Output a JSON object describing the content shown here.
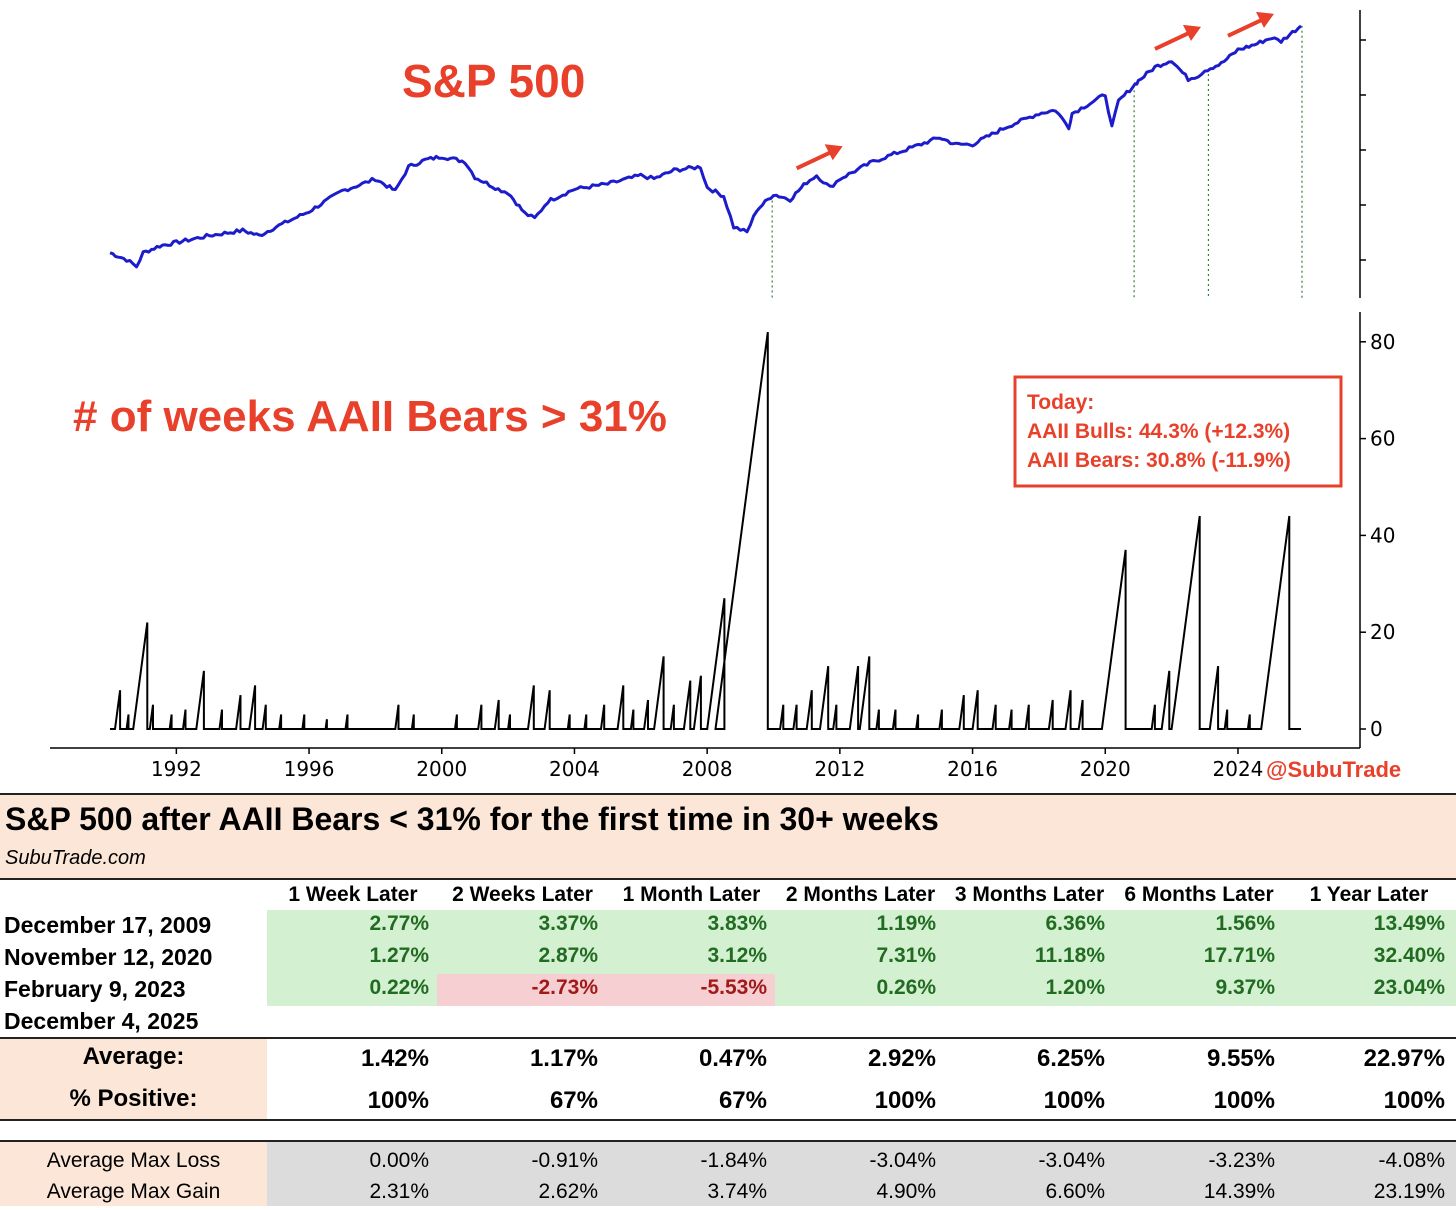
{
  "chart_data": [
    {
      "type": "line",
      "title": "S&P 500",
      "x_range": [
        1990,
        2025.9
      ],
      "series": [
        {
          "name": "S&P 500 (log scale, relative)",
          "color": "#1c1ccc",
          "x": [
            1990.0,
            1990.5,
            1990.8,
            1991.0,
            1991.5,
            1992.0,
            1993.0,
            1994.0,
            1994.5,
            1995.0,
            1996.0,
            1997.0,
            1997.6,
            1998.0,
            1998.6,
            1999.0,
            1999.5,
            2000.0,
            2000.7,
            2001.0,
            2001.7,
            2002.0,
            2002.5,
            2002.8,
            2003.2,
            2004.0,
            2005.0,
            2006.0,
            2006.4,
            2007.0,
            2007.8,
            2008.0,
            2008.5,
            2008.8,
            2009.2,
            2009.5,
            2010.0,
            2010.5,
            2011.0,
            2011.3,
            2011.7,
            2012.0,
            2013.0,
            2014.0,
            2015.0,
            2015.5,
            2016.0,
            2016.5,
            2017.0,
            2018.0,
            2018.5,
            2018.9,
            2019.0,
            2020.0,
            2020.2,
            2020.4,
            2020.9,
            2021.0,
            2021.5,
            2022.0,
            2022.5,
            2022.8,
            2023.0,
            2023.5,
            2024.0,
            2024.5,
            2025.0,
            2025.3,
            2025.9
          ],
          "y": [
            0.1,
            0.06,
            0.02,
            0.1,
            0.14,
            0.16,
            0.2,
            0.23,
            0.2,
            0.25,
            0.34,
            0.46,
            0.5,
            0.53,
            0.46,
            0.6,
            0.64,
            0.66,
            0.63,
            0.54,
            0.47,
            0.45,
            0.33,
            0.3,
            0.4,
            0.47,
            0.5,
            0.55,
            0.53,
            0.58,
            0.6,
            0.48,
            0.43,
            0.25,
            0.22,
            0.35,
            0.44,
            0.41,
            0.51,
            0.55,
            0.48,
            0.53,
            0.63,
            0.7,
            0.77,
            0.73,
            0.73,
            0.78,
            0.83,
            0.91,
            0.93,
            0.83,
            0.91,
            1.02,
            0.83,
            0.98,
            1.08,
            1.1,
            1.18,
            1.22,
            1.11,
            1.13,
            1.16,
            1.2,
            1.28,
            1.31,
            1.35,
            1.33,
            1.42
          ]
        }
      ],
      "reference_dates": [
        2009.96,
        2020.87,
        2023.11,
        2025.93
      ],
      "arrows_near": [
        2011.0,
        2021.8,
        2024.0
      ]
    },
    {
      "type": "line",
      "title": "# of weeks AAII Bears > 31%",
      "x_range": [
        1990,
        2025.9
      ],
      "xticks": [
        "1992",
        "1996",
        "2000",
        "2004",
        "2008",
        "2012",
        "2016",
        "2020",
        "2024"
      ],
      "xtick_values": [
        1992,
        1996,
        2000,
        2004,
        2008,
        2012,
        2016,
        2020,
        2024
      ],
      "ylim": [
        0,
        85
      ],
      "yticks": [
        0,
        20,
        40,
        60,
        80
      ],
      "ytick_labels": [
        "0",
        "20",
        "40",
        "60",
        "80"
      ],
      "spikes": [
        {
          "start": 1990.15,
          "peak": 8
        },
        {
          "start": 1990.5,
          "peak": 3
        },
        {
          "start": 1990.7,
          "peak": 22
        },
        {
          "start": 1991.2,
          "peak": 5
        },
        {
          "start": 1991.8,
          "peak": 3
        },
        {
          "start": 1992.2,
          "peak": 4
        },
        {
          "start": 1992.6,
          "peak": 12
        },
        {
          "start": 1993.3,
          "peak": 4
        },
        {
          "start": 1993.8,
          "peak": 7
        },
        {
          "start": 1994.2,
          "peak": 9
        },
        {
          "start": 1994.6,
          "peak": 5
        },
        {
          "start": 1995.1,
          "peak": 3
        },
        {
          "start": 1995.8,
          "peak": 3
        },
        {
          "start": 1996.5,
          "peak": 2
        },
        {
          "start": 1997.1,
          "peak": 3
        },
        {
          "start": 1998.6,
          "peak": 5
        },
        {
          "start": 1999.1,
          "peak": 3
        },
        {
          "start": 2000.4,
          "peak": 3
        },
        {
          "start": 2001.1,
          "peak": 5
        },
        {
          "start": 2001.6,
          "peak": 6
        },
        {
          "start": 2002.0,
          "peak": 3
        },
        {
          "start": 2002.6,
          "peak": 9
        },
        {
          "start": 2003.1,
          "peak": 8
        },
        {
          "start": 2003.8,
          "peak": 3
        },
        {
          "start": 2004.3,
          "peak": 3
        },
        {
          "start": 2004.8,
          "peak": 5
        },
        {
          "start": 2005.3,
          "peak": 9
        },
        {
          "start": 2005.7,
          "peak": 4
        },
        {
          "start": 2006.1,
          "peak": 6
        },
        {
          "start": 2006.4,
          "peak": 15
        },
        {
          "start": 2006.9,
          "peak": 5
        },
        {
          "start": 2007.3,
          "peak": 10
        },
        {
          "start": 2007.6,
          "peak": 11
        },
        {
          "start": 2008.0,
          "peak": 27
        },
        {
          "start": 2008.25,
          "peak": 82
        },
        {
          "start": 2010.2,
          "peak": 5
        },
        {
          "start": 2010.6,
          "peak": 5
        },
        {
          "start": 2011.0,
          "peak": 8
        },
        {
          "start": 2011.4,
          "peak": 13
        },
        {
          "start": 2011.8,
          "peak": 5
        },
        {
          "start": 2012.3,
          "peak": 13
        },
        {
          "start": 2012.6,
          "peak": 15
        },
        {
          "start": 2013.1,
          "peak": 4
        },
        {
          "start": 2013.6,
          "peak": 4
        },
        {
          "start": 2014.3,
          "peak": 3
        },
        {
          "start": 2015.0,
          "peak": 4
        },
        {
          "start": 2015.6,
          "peak": 7
        },
        {
          "start": 2016.0,
          "peak": 8
        },
        {
          "start": 2016.6,
          "peak": 5
        },
        {
          "start": 2017.1,
          "peak": 4
        },
        {
          "start": 2017.6,
          "peak": 5
        },
        {
          "start": 2018.3,
          "peak": 6
        },
        {
          "start": 2018.8,
          "peak": 8
        },
        {
          "start": 2019.2,
          "peak": 6
        },
        {
          "start": 2019.9,
          "peak": 37
        },
        {
          "start": 2021.4,
          "peak": 5
        },
        {
          "start": 2021.7,
          "peak": 12
        },
        {
          "start": 2022.0,
          "peak": 44
        },
        {
          "start": 2023.15,
          "peak": 13
        },
        {
          "start": 2023.6,
          "peak": 4
        },
        {
          "start": 2024.3,
          "peak": 3
        },
        {
          "start": 2024.7,
          "peak": 44
        }
      ],
      "annotation": {
        "heading": "Today:",
        "bulls": "AAII Bulls: 44.3% (+12.3%)",
        "bears": "AAII Bears: 30.8% (-11.9%)"
      },
      "handle": "@SubuTrade"
    },
    {
      "type": "table",
      "title": "S&P 500 after AAII Bears < 31% for the first time in 30+ weeks",
      "source": "SubuTrade.com",
      "columns": [
        "1 Week Later",
        "2 Weeks Later",
        "1 Month Later",
        "2 Months Later",
        "3 Months Later",
        "6 Months Later",
        "1 Year Later"
      ],
      "rows": [
        {
          "date": "December 17, 2009",
          "values": [
            "2.77%",
            "3.37%",
            "3.83%",
            "1.19%",
            "6.36%",
            "1.56%",
            "13.49%"
          ],
          "signs": [
            "pos",
            "pos",
            "pos",
            "pos",
            "pos",
            "pos",
            "pos"
          ]
        },
        {
          "date": "November 12, 2020",
          "values": [
            "1.27%",
            "2.87%",
            "3.12%",
            "7.31%",
            "11.18%",
            "17.71%",
            "32.40%"
          ],
          "signs": [
            "pos",
            "pos",
            "pos",
            "pos",
            "pos",
            "pos",
            "pos"
          ]
        },
        {
          "date": "February 9, 2023",
          "values": [
            "0.22%",
            "-2.73%",
            "-5.53%",
            "0.26%",
            "1.20%",
            "9.37%",
            "23.04%"
          ],
          "signs": [
            "pos",
            "neg",
            "neg",
            "pos",
            "pos",
            "pos",
            "pos"
          ]
        },
        {
          "date": "December 4, 2025",
          "values": [
            "",
            "",
            "",
            "",
            "",
            "",
            ""
          ],
          "signs": [
            "",
            "",
            "",
            "",
            "",
            "",
            ""
          ]
        }
      ],
      "average": {
        "label": "Average:",
        "values": [
          "1.42%",
          "1.17%",
          "0.47%",
          "2.92%",
          "6.25%",
          "9.55%",
          "22.97%"
        ]
      },
      "positive": {
        "label": "% Positive:",
        "values": [
          "100%",
          "67%",
          "67%",
          "100%",
          "100%",
          "100%",
          "100%"
        ]
      },
      "max_loss": {
        "label": "Average Max Loss",
        "values": [
          "0.00%",
          "-0.91%",
          "-1.84%",
          "-3.04%",
          "-3.04%",
          "-3.23%",
          "-4.08%"
        ]
      },
      "max_gain": {
        "label": "Average Max Gain",
        "values": [
          "2.31%",
          "2.62%",
          "3.74%",
          "4.90%",
          "6.60%",
          "14.39%",
          "23.19%"
        ]
      }
    }
  ]
}
